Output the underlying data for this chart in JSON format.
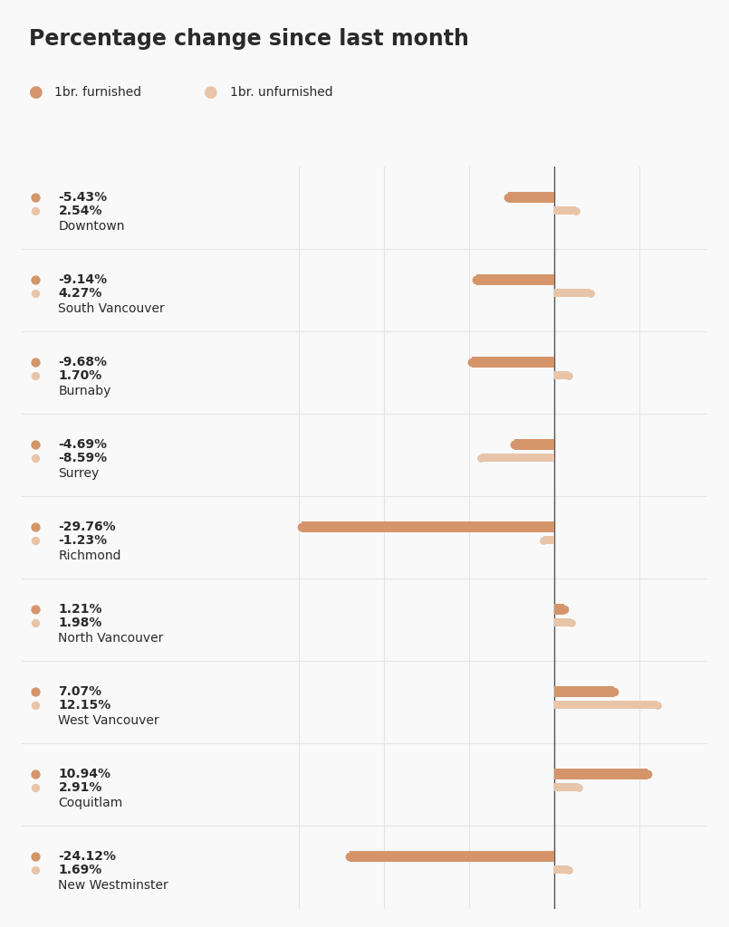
{
  "title": "Percentage change since last month",
  "legend": [
    "1br. furnished",
    "1br. unfurnished"
  ],
  "legend_colors": [
    "#d4956a",
    "#e8c4a8"
  ],
  "background_color": "#f9f9f9",
  "grid_color": "#e5e5e5",
  "zero_line_color": "#555555",
  "cities": [
    "Downtown",
    "South Vancouver",
    "Burnaby",
    "Surrey",
    "Richmond",
    "North Vancouver",
    "West Vancouver",
    "Coquitlam",
    "New Westminster"
  ],
  "furnished_values": [
    -5.43,
    -9.14,
    -9.68,
    -4.69,
    -29.76,
    1.21,
    7.07,
    10.94,
    -24.12
  ],
  "unfurnished_values": [
    2.54,
    4.27,
    1.7,
    -8.59,
    -1.23,
    1.98,
    12.15,
    2.91,
    1.69
  ],
  "furnished_color": "#d4956a",
  "unfurnished_color": "#e8c4a8",
  "xlim": [
    -32,
    18
  ],
  "text_color": "#2a2a2a",
  "title_fontsize": 17,
  "label_fontsize": 10,
  "city_fontsize": 10
}
